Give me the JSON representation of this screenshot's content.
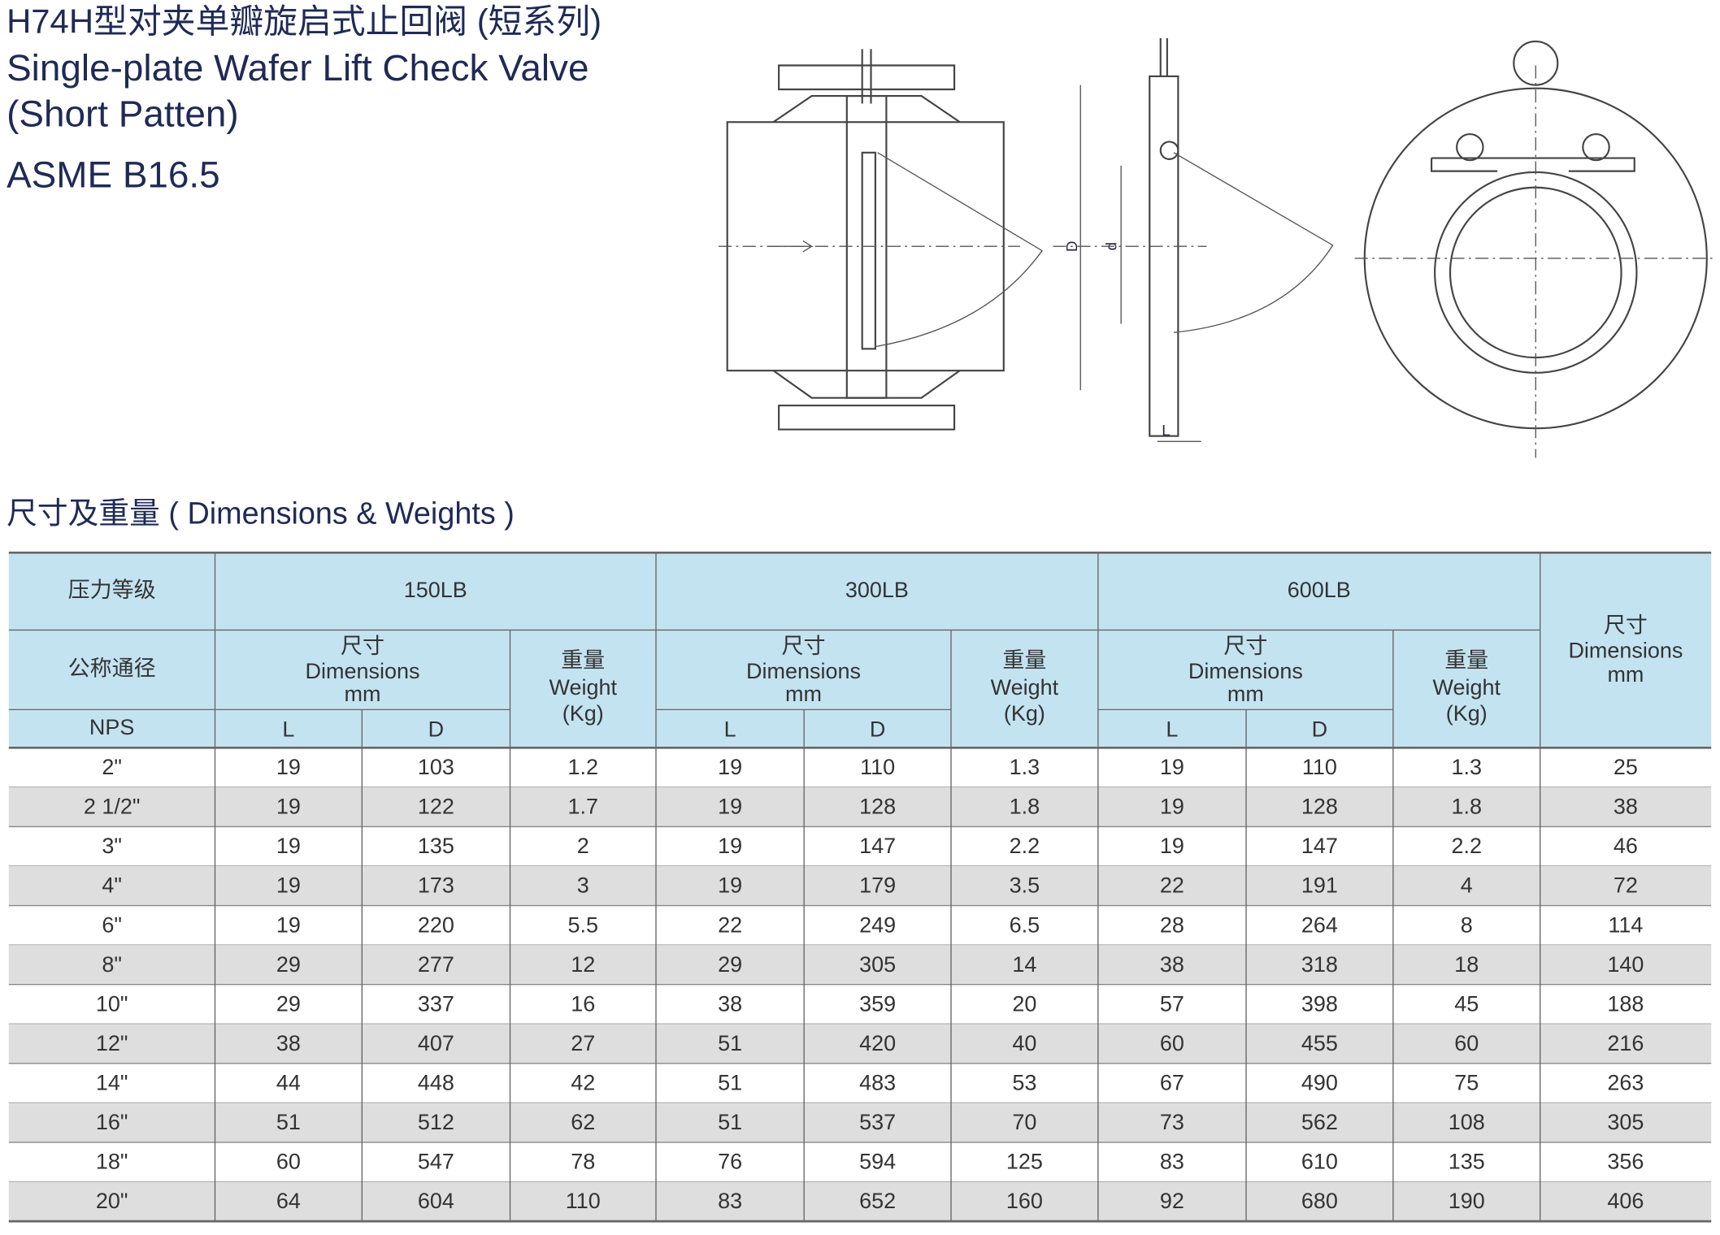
{
  "header": {
    "title_cn": "H74H型对夹单瓣旋启式止回阀 (短系列)",
    "title_en_1": "Single-plate Wafer Lift  Check Valve",
    "title_en_2": "(Short Patten)",
    "standard": "ASME B16.5"
  },
  "drawing": {
    "labels": [
      "D",
      "d",
      "L"
    ]
  },
  "section_title": "尺寸及重量 ( Dimensions & Weights )",
  "table": {
    "pressure_label": "压力等级",
    "size_label": "公称通径",
    "nps_label": "NPS",
    "classes": [
      "150LB",
      "300LB",
      "600LB"
    ],
    "dim_label": {
      "cn": "尺寸",
      "en": "Dimensions",
      "unit": "mm"
    },
    "weight_label": {
      "cn": "重量",
      "en": "Weight",
      "unit": "(Kg)"
    },
    "col_L": "L",
    "col_D": "D",
    "rows": [
      [
        "2\"",
        19,
        103,
        1.2,
        19,
        110,
        1.3,
        19,
        110,
        1.3,
        25
      ],
      [
        "2 1/2\"",
        19,
        122,
        1.7,
        19,
        128,
        1.8,
        19,
        128,
        1.8,
        38
      ],
      [
        "3\"",
        19,
        135,
        2,
        19,
        147,
        2.2,
        19,
        147,
        2.2,
        46
      ],
      [
        "4\"",
        19,
        173,
        3,
        19,
        179,
        3.5,
        22,
        191,
        4,
        72
      ],
      [
        "6\"",
        19,
        220,
        5.5,
        22,
        249,
        6.5,
        28,
        264,
        8,
        114
      ],
      [
        "8\"",
        29,
        277,
        12,
        29,
        305,
        14,
        38,
        318,
        18,
        140
      ],
      [
        "10\"",
        29,
        337,
        16,
        38,
        359,
        20,
        57,
        398,
        45,
        188
      ],
      [
        "12\"",
        38,
        407,
        27,
        51,
        420,
        40,
        60,
        455,
        60,
        216
      ],
      [
        "14\"",
        44,
        448,
        42,
        51,
        483,
        53,
        67,
        490,
        75,
        263
      ],
      [
        "16\"",
        51,
        512,
        62,
        51,
        537,
        70,
        73,
        562,
        108,
        305
      ],
      [
        "18\"",
        60,
        547,
        78,
        76,
        594,
        125,
        83,
        610,
        135,
        356
      ],
      [
        "20\"",
        64,
        604,
        110,
        83,
        652,
        160,
        92,
        680,
        190,
        406
      ]
    ]
  }
}
